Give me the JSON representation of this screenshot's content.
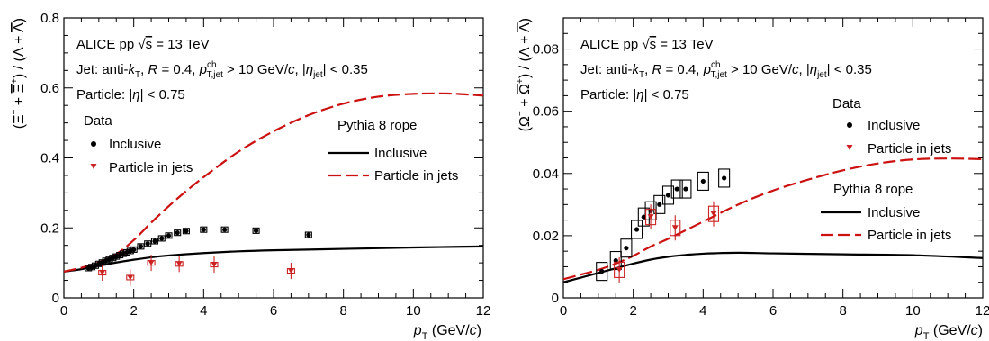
{
  "chart_data": [
    {
      "type": "scatter",
      "xlabel": "p_T (GeV/c)",
      "ylabel": "(Ξ⁻ + Ξ̄⁺) / (Λ + Λ̄)",
      "xlim": [
        0,
        12
      ],
      "ylim": [
        0,
        0.8
      ],
      "xticks": [
        0,
        2,
        4,
        6,
        8,
        10,
        12
      ],
      "yticks": [
        0,
        0.2,
        0.4,
        0.6,
        0.8
      ],
      "annotations": [
        "ALICE pp √s = 13 TeV",
        "Jet: anti-kT, R = 0.4, p^ch_T,jet > 10 GeV/c, |η_jet| < 0.35",
        "Particle: |η| < 0.75"
      ],
      "legend": {
        "data_title": "Data",
        "model_title": "Pythia 8 rope",
        "inclusive_label": "Inclusive",
        "jets_label": "Particle in jets"
      },
      "series": [
        {
          "name": "Inclusive",
          "x": [
            0.7,
            0.8,
            0.9,
            1.0,
            1.1,
            1.2,
            1.3,
            1.4,
            1.5,
            1.6,
            1.7,
            1.8,
            1.9,
            2.0,
            2.2,
            2.4,
            2.6,
            2.8,
            3.0,
            3.25,
            3.5,
            4.0,
            4.6,
            5.5,
            7.0
          ],
          "y": [
            0.085,
            0.088,
            0.092,
            0.097,
            0.101,
            0.106,
            0.11,
            0.114,
            0.118,
            0.122,
            0.126,
            0.13,
            0.134,
            0.138,
            0.147,
            0.155,
            0.162,
            0.17,
            0.178,
            0.186,
            0.191,
            0.195,
            0.195,
            0.192,
            0.18
          ]
        },
        {
          "name": "Particle in jets",
          "x": [
            1.1,
            1.9,
            2.5,
            3.3,
            4.3,
            6.5
          ],
          "y": [
            0.072,
            0.058,
            0.1,
            0.097,
            0.095,
            0.077
          ]
        },
        {
          "name": "Pythia 8 rope Inclusive",
          "x": [
            0,
            0.5,
            1,
            1.5,
            2,
            2.5,
            3,
            4,
            5,
            6,
            8,
            10,
            12
          ],
          "y": [
            0.075,
            0.082,
            0.092,
            0.101,
            0.109,
            0.116,
            0.121,
            0.128,
            0.133,
            0.136,
            0.14,
            0.144,
            0.147
          ]
        },
        {
          "name": "Pythia 8 rope Particle in jets",
          "x": [
            0,
            0.5,
            1,
            1.5,
            2,
            2.5,
            3,
            3.5,
            4,
            5,
            6,
            7,
            8,
            9,
            10,
            11,
            12
          ],
          "y": [
            0.075,
            0.086,
            0.102,
            0.125,
            0.165,
            0.215,
            0.262,
            0.305,
            0.345,
            0.418,
            0.476,
            0.522,
            0.555,
            0.575,
            0.583,
            0.584,
            0.578
          ]
        }
      ]
    },
    {
      "type": "scatter",
      "xlabel": "p_T (GeV/c)",
      "ylabel": "(Ω⁻ + Ω̄⁺) / (Λ + Λ̄)",
      "xlim": [
        0,
        12
      ],
      "ylim": [
        0,
        0.09
      ],
      "xticks": [
        0,
        2,
        4,
        6,
        8,
        10,
        12
      ],
      "yticks": [
        0,
        0.02,
        0.04,
        0.06,
        0.08
      ],
      "annotations": [
        "ALICE pp √s = 13 TeV",
        "Jet: anti-kT, R = 0.4, p^ch_T,jet > 10 GeV/c, |η_jet| < 0.35",
        "Particle: |η| < 0.75"
      ],
      "legend": {
        "data_title": "Data",
        "model_title": "Pythia 8 rope",
        "inclusive_label": "Inclusive",
        "jets_label": "Particle in jets"
      },
      "series": [
        {
          "name": "Inclusive",
          "x": [
            1.1,
            1.5,
            1.8,
            2.1,
            2.3,
            2.5,
            2.75,
            3.0,
            3.25,
            3.5,
            4.0,
            4.6
          ],
          "y": [
            0.0085,
            0.012,
            0.016,
            0.022,
            0.026,
            0.028,
            0.03,
            0.033,
            0.035,
            0.035,
            0.0375,
            0.0385
          ]
        },
        {
          "name": "Particle in jets",
          "x": [
            1.6,
            2.5,
            3.2,
            4.3
          ],
          "y": [
            0.009,
            0.026,
            0.0225,
            0.027
          ]
        },
        {
          "name": "Pythia 8 rope Inclusive",
          "x": [
            0,
            0.5,
            1,
            1.5,
            2,
            2.5,
            3,
            3.5,
            4,
            5,
            6,
            8,
            10,
            12
          ],
          "y": [
            0.005,
            0.0065,
            0.008,
            0.0095,
            0.011,
            0.0123,
            0.0132,
            0.0138,
            0.0142,
            0.0145,
            0.0143,
            0.014,
            0.0137,
            0.0128
          ]
        },
        {
          "name": "Pythia 8 rope Particle in jets",
          "x": [
            0,
            0.5,
            1,
            1.5,
            2,
            2.5,
            3,
            4,
            5,
            6,
            7,
            8,
            9,
            10,
            11,
            12
          ],
          "y": [
            0.006,
            0.0075,
            0.009,
            0.011,
            0.0135,
            0.0165,
            0.019,
            0.0245,
            0.03,
            0.0345,
            0.038,
            0.041,
            0.0432,
            0.0445,
            0.0448,
            0.0446
          ]
        }
      ]
    }
  ]
}
